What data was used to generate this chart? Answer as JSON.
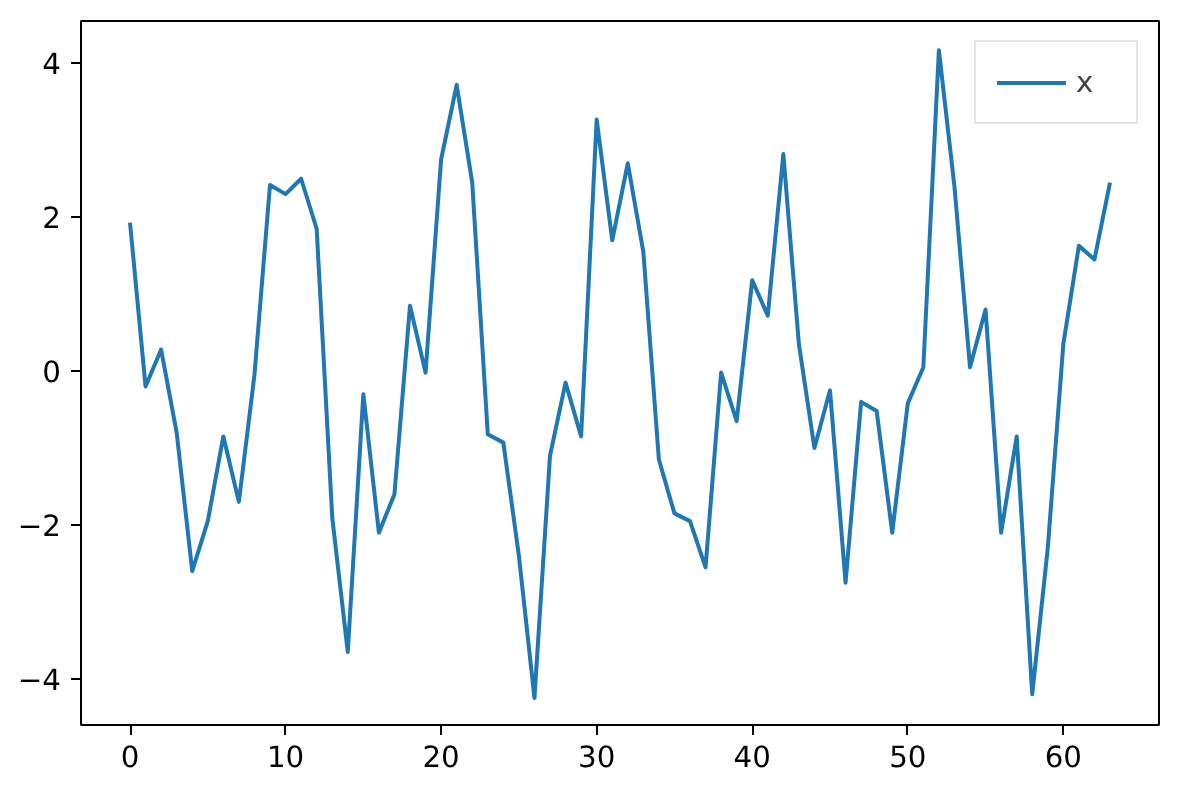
{
  "chart_data": {
    "type": "line",
    "x": [
      0,
      1,
      2,
      3,
      4,
      5,
      6,
      7,
      8,
      9,
      10,
      11,
      12,
      13,
      14,
      15,
      16,
      17,
      18,
      19,
      20,
      21,
      22,
      23,
      24,
      25,
      26,
      27,
      28,
      29,
      30,
      31,
      32,
      33,
      34,
      35,
      36,
      37,
      38,
      39,
      40,
      41,
      42,
      43,
      44,
      45,
      46,
      47,
      48,
      49,
      50,
      51,
      52,
      53,
      54,
      55,
      56,
      57,
      58,
      59,
      60,
      61,
      62,
      63
    ],
    "series": [
      {
        "name": "x",
        "color": "#1f77b4",
        "values": [
          1.93,
          -0.2,
          0.28,
          -0.8,
          -2.6,
          -1.95,
          -0.85,
          -1.7,
          -0.05,
          2.42,
          2.3,
          2.5,
          1.85,
          -1.9,
          -3.65,
          -0.3,
          -2.1,
          -1.6,
          0.85,
          -0.02,
          2.75,
          3.72,
          2.45,
          -0.82,
          -0.93,
          -2.4,
          -4.25,
          -1.1,
          -0.15,
          -0.85,
          3.27,
          1.7,
          2.7,
          1.55,
          -1.15,
          -1.85,
          -1.95,
          -2.55,
          -0.02,
          -0.65,
          1.18,
          0.72,
          2.82,
          0.35,
          -1.0,
          -0.25,
          -2.75,
          -0.4,
          -0.52,
          -2.1,
          -0.42,
          0.05,
          4.17,
          2.4,
          0.05,
          0.8,
          -2.1,
          -0.85,
          -4.2,
          -2.3,
          0.35,
          1.63,
          1.45,
          2.45
        ]
      }
    ],
    "xlim": [
      -3.15,
      66.15
    ],
    "ylim": [
      -4.6,
      4.55
    ],
    "xticks": [
      0,
      10,
      20,
      30,
      40,
      50,
      60
    ],
    "yticks": [
      -4,
      -2,
      0,
      2,
      4
    ],
    "grid": false,
    "legend": "top right",
    "marker": "none",
    "line_style": "solid"
  }
}
